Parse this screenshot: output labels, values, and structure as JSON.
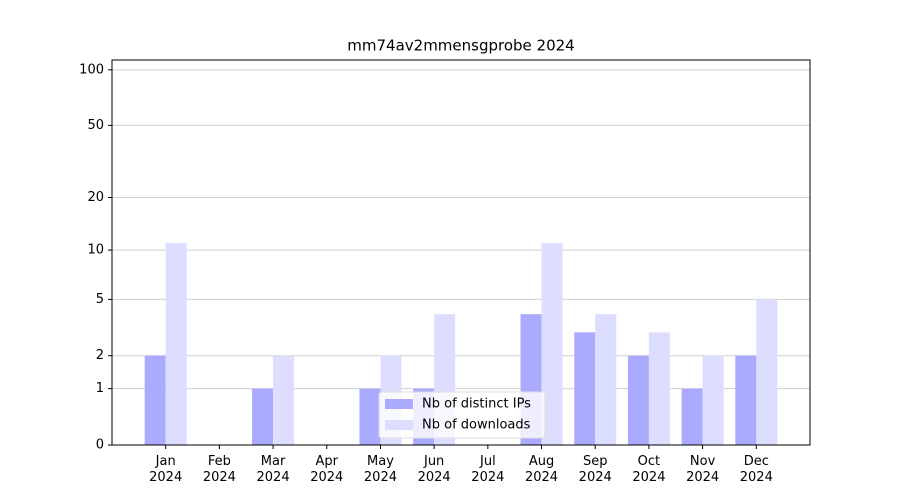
{
  "chart_data": {
    "type": "bar",
    "title": "mm74av2mmensgprobe 2024",
    "categories": [
      "Jan 2024",
      "Feb 2024",
      "Mar 2024",
      "Apr 2024",
      "May 2024",
      "Jun 2024",
      "Jul 2024",
      "Aug 2024",
      "Sep 2024",
      "Oct 2024",
      "Nov 2024",
      "Dec 2024"
    ],
    "series": [
      {
        "name": "Nb of distinct IPs",
        "color": "#aaaaff",
        "values": [
          2,
          0,
          1,
          0,
          1,
          1,
          0,
          4,
          3,
          2,
          1,
          2
        ]
      },
      {
        "name": "Nb of downloads",
        "color": "#ddddff",
        "values": [
          11,
          0,
          2,
          0,
          2,
          4,
          0,
          11,
          4,
          3,
          2,
          5
        ]
      }
    ],
    "yscale": "log1p",
    "ylim": [
      0,
      113
    ],
    "yticks": [
      0,
      1,
      2,
      5,
      10,
      20,
      50,
      100
    ],
    "grid": true,
    "legend": "lower center"
  }
}
